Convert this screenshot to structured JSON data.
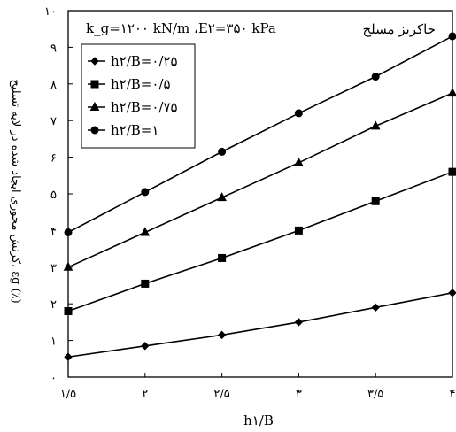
{
  "chart_data": {
    "type": "line",
    "params_label": "k_g=۱۲۰۰ kN/m ،E۲=۳۵۰ kPa",
    "annotation": "خاکریز مسلح",
    "xlabel": "h۱/B",
    "ylabel": "کرنش محوری ایجاد شده در لایه تسلیح، εg (٪)",
    "xlim": [
      1.5,
      4
    ],
    "ylim": [
      0,
      10
    ],
    "x_tick_labels": [
      "۱/۵",
      "۲",
      "۲/۵",
      "۳",
      "۳/۵",
      "۴"
    ],
    "y_tick_labels": [
      "۰",
      "۱",
      "۲",
      "۳",
      "۴",
      "۵",
      "۶",
      "۷",
      "۸",
      "۹",
      "۱۰"
    ],
    "legend_position": "top-left",
    "x": [
      1.5,
      2,
      2.5,
      3,
      3.5,
      4
    ],
    "series": [
      {
        "name": "h۲/B=۰/۲۵",
        "marker": "diamond",
        "values": [
          0.55,
          0.85,
          1.15,
          1.5,
          1.9,
          2.3
        ]
      },
      {
        "name": "h۲/B=۰/۵",
        "marker": "square",
        "values": [
          1.8,
          2.55,
          3.25,
          4.0,
          4.8,
          5.6
        ]
      },
      {
        "name": "h۲/B=۰/۷۵",
        "marker": "triangle",
        "values": [
          3.0,
          3.95,
          4.9,
          5.85,
          6.85,
          7.75
        ]
      },
      {
        "name": "h۲/B=۱",
        "marker": "circle",
        "values": [
          3.95,
          5.05,
          6.15,
          7.2,
          8.2,
          9.3
        ]
      }
    ],
    "line_color": "#000000",
    "grid": false
  }
}
